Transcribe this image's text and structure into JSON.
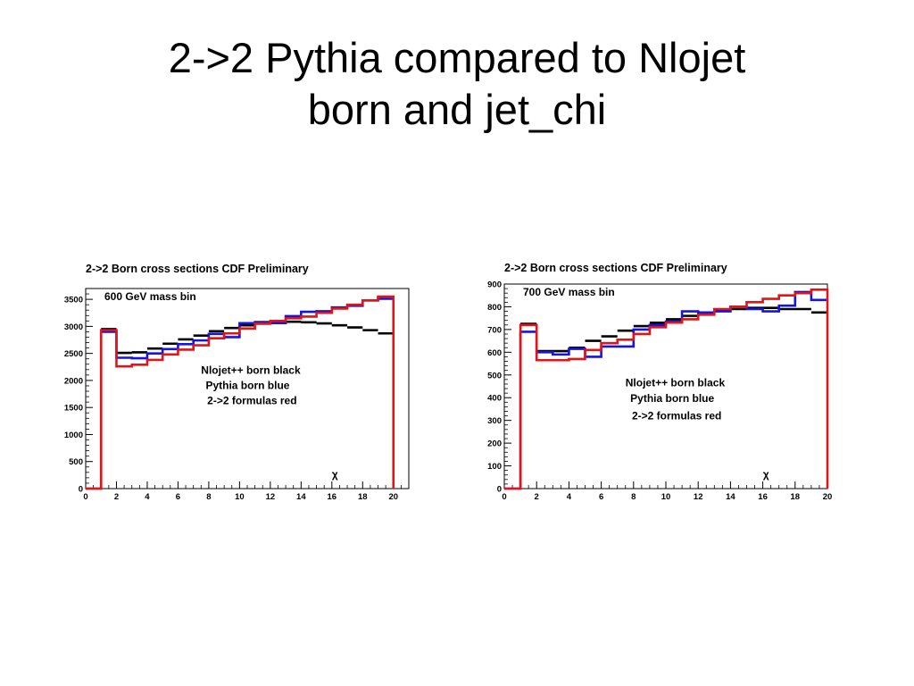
{
  "slide": {
    "title_line1": "2->2 Pythia compared to Nlojet",
    "title_line2": "born and jet_chi"
  },
  "colors": {
    "nlojet": "#000000",
    "pythia": "#1515e0",
    "formulas": "#e01515"
  },
  "chart_data": [
    {
      "type": "line",
      "title": "2->2 Born cross sections CDF Preliminary",
      "mass_bin": "600 GeV mass bin",
      "xlabel": "χ",
      "xlim": [
        0,
        21
      ],
      "ylim": [
        0,
        3700
      ],
      "x_ticks": [
        0,
        2,
        4,
        6,
        8,
        10,
        12,
        14,
        16,
        18,
        20
      ],
      "y_ticks": [
        0,
        500,
        1000,
        1500,
        2000,
        2500,
        3000,
        3500
      ],
      "annotations": [
        "Nlojet++ born black",
        "Pythia born blue",
        "2->2 formulas red"
      ],
      "bin_edges": [
        1,
        2,
        3,
        4,
        5,
        6,
        7,
        8,
        9,
        10,
        11,
        12,
        13,
        14,
        15,
        16,
        17,
        18,
        19,
        20
      ],
      "series": [
        {
          "name": "Nlojet++ born",
          "color": "black",
          "values": [
            2950,
            2510,
            2520,
            2590,
            2680,
            2760,
            2830,
            2910,
            2970,
            3020,
            3050,
            3075,
            3085,
            3075,
            3055,
            3020,
            2980,
            2930,
            2870
          ]
        },
        {
          "name": "Pythia born",
          "color": "blue",
          "values": [
            2900,
            2420,
            2410,
            2500,
            2580,
            2670,
            2740,
            2860,
            2800,
            3060,
            3080,
            3060,
            3190,
            3270,
            3280,
            3350,
            3380,
            3480,
            3510
          ]
        },
        {
          "name": "2->2 formulas",
          "color": "red",
          "values": [
            2930,
            2260,
            2290,
            2380,
            2480,
            2570,
            2650,
            2780,
            2870,
            2960,
            3050,
            3100,
            3150,
            3180,
            3250,
            3330,
            3400,
            3480,
            3550
          ]
        }
      ]
    },
    {
      "type": "line",
      "title": "2->2 Born cross sections  CDF Preliminary",
      "mass_bin": "700 GeV mass bin",
      "xlabel": "χ",
      "xlim": [
        0,
        20
      ],
      "ylim": [
        0,
        900
      ],
      "x_ticks": [
        0,
        2,
        4,
        6,
        8,
        10,
        12,
        14,
        16,
        18,
        20
      ],
      "y_ticks": [
        0,
        100,
        200,
        300,
        400,
        500,
        600,
        700,
        800,
        900
      ],
      "annotations": [
        "Nlojet++ born black",
        "Pythia born blue",
        "2->2 formulas red"
      ],
      "bin_edges": [
        1,
        2,
        3,
        4,
        5,
        6,
        7,
        8,
        9,
        10,
        11,
        12,
        13,
        14,
        15,
        16,
        17,
        18,
        19,
        20
      ],
      "series": [
        {
          "name": "Nlojet++ born",
          "color": "black",
          "values": [
            725,
            605,
            605,
            620,
            650,
            670,
            695,
            715,
            730,
            745,
            760,
            775,
            785,
            790,
            795,
            795,
            790,
            790,
            775
          ]
        },
        {
          "name": "Pythia born",
          "color": "blue",
          "values": [
            690,
            600,
            590,
            615,
            580,
            625,
            625,
            700,
            720,
            735,
            780,
            775,
            780,
            800,
            790,
            780,
            805,
            865,
            830
          ]
        },
        {
          "name": "2->2 formulas",
          "color": "red",
          "values": [
            720,
            565,
            565,
            570,
            610,
            640,
            655,
            680,
            710,
            730,
            745,
            765,
            790,
            800,
            820,
            835,
            850,
            860,
            875
          ]
        }
      ]
    }
  ]
}
